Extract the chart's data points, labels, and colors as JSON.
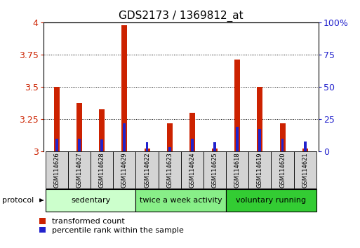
{
  "title": "GDS2173 / 1369812_at",
  "samples": [
    "GSM114626",
    "GSM114627",
    "GSM114628",
    "GSM114629",
    "GSM114622",
    "GSM114623",
    "GSM114624",
    "GSM114625",
    "GSM114618",
    "GSM114619",
    "GSM114620",
    "GSM114621"
  ],
  "red_values": [
    3.5,
    3.375,
    3.325,
    3.975,
    3.02,
    3.215,
    3.3,
    3.02,
    3.71,
    3.5,
    3.215,
    3.02
  ],
  "blue_values": [
    3.1,
    3.1,
    3.09,
    3.215,
    3.07,
    3.03,
    3.1,
    3.07,
    3.19,
    3.175,
    3.1,
    3.075
  ],
  "ylim": [
    3.0,
    4.0
  ],
  "yticks_left": [
    3.0,
    3.25,
    3.5,
    3.75,
    4.0
  ],
  "yticks_right": [
    0,
    25,
    50,
    75,
    100
  ],
  "ytick_labels_left": [
    "3",
    "3.25",
    "3.5",
    "3.75",
    "4"
  ],
  "ytick_labels_right": [
    "0",
    "25",
    "50",
    "75",
    "100%"
  ],
  "red_color": "#cc2200",
  "blue_color": "#2222cc",
  "bar_width": 0.25,
  "blue_bar_width": 0.12,
  "groups": [
    {
      "label": "sedentary",
      "start": 0,
      "end": 4,
      "color": "#ccffcc"
    },
    {
      "label": "twice a week activity",
      "start": 4,
      "end": 8,
      "color": "#88ee88"
    },
    {
      "label": "voluntary running",
      "start": 8,
      "end": 12,
      "color": "#33cc33"
    }
  ],
  "protocol_label": "protocol",
  "legend_red": "transformed count",
  "legend_blue": "percentile rank within the sample",
  "tick_label_color_left": "#cc2200",
  "tick_label_color_right": "#2222cc",
  "bg_color": "#ffffff"
}
